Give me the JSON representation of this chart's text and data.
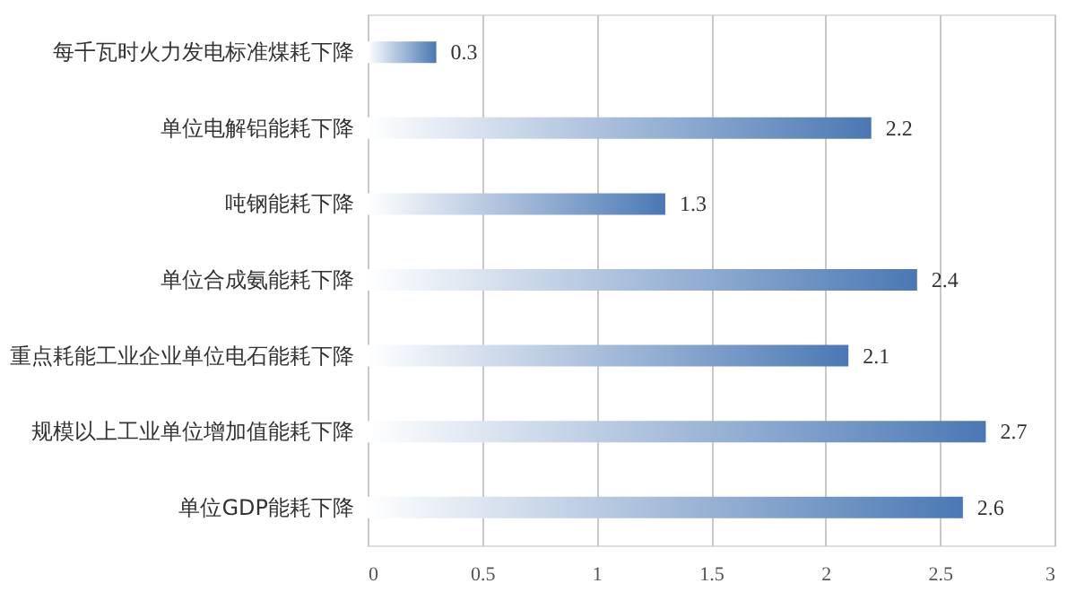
{
  "chart_data": {
    "type": "bar",
    "orientation": "horizontal",
    "categories": [
      "每千瓦时火力发电标准煤耗下降",
      "单位电解铝能耗下降",
      "吨钢能耗下降",
      "单位合成氨能耗下降",
      "重点耗能工业企业单位电石能耗下降",
      "规模以上工业单位增加值能耗下降",
      "单位GDP能耗下降"
    ],
    "values": [
      0.3,
      2.2,
      1.3,
      2.4,
      2.1,
      2.7,
      2.6
    ],
    "color": "#4a78b4",
    "xlim": [
      0,
      3
    ],
    "xticks": [
      0,
      0.5,
      1,
      1.5,
      2,
      2.5,
      3
    ],
    "grid": "x",
    "data_labels": true
  }
}
